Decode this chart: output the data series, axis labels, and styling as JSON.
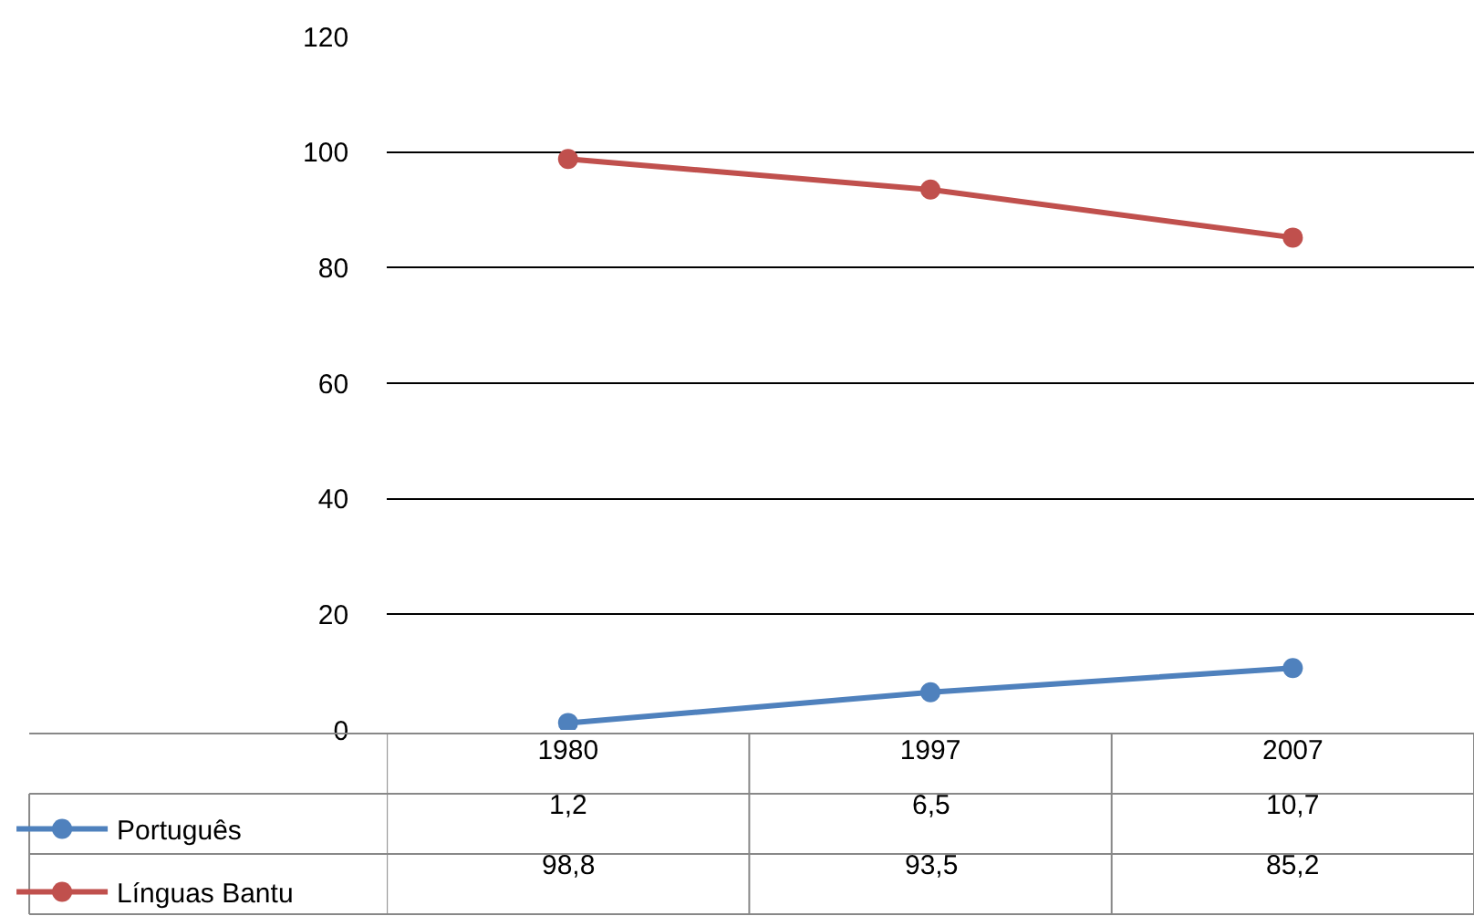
{
  "chart_data": {
    "type": "line",
    "categories": [
      "1980",
      "1997",
      "2007"
    ],
    "series": [
      {
        "name": "Português",
        "color": "#4f81bd",
        "values": [
          1.2,
          6.5,
          10.7
        ],
        "value_labels": [
          "1,2",
          "6,5",
          "10,7"
        ]
      },
      {
        "name": "Línguas Bantu",
        "color": "#c0504d",
        "values": [
          98.8,
          93.5,
          85.2
        ],
        "value_labels": [
          "98,8",
          "93,5",
          "85,2"
        ]
      }
    ],
    "ylim": [
      0,
      120
    ],
    "yticks": [
      0,
      20,
      40,
      60,
      80,
      100,
      120
    ],
    "grid": "y",
    "marker": "circle",
    "line_style": "solid",
    "legend": "bottom left"
  }
}
